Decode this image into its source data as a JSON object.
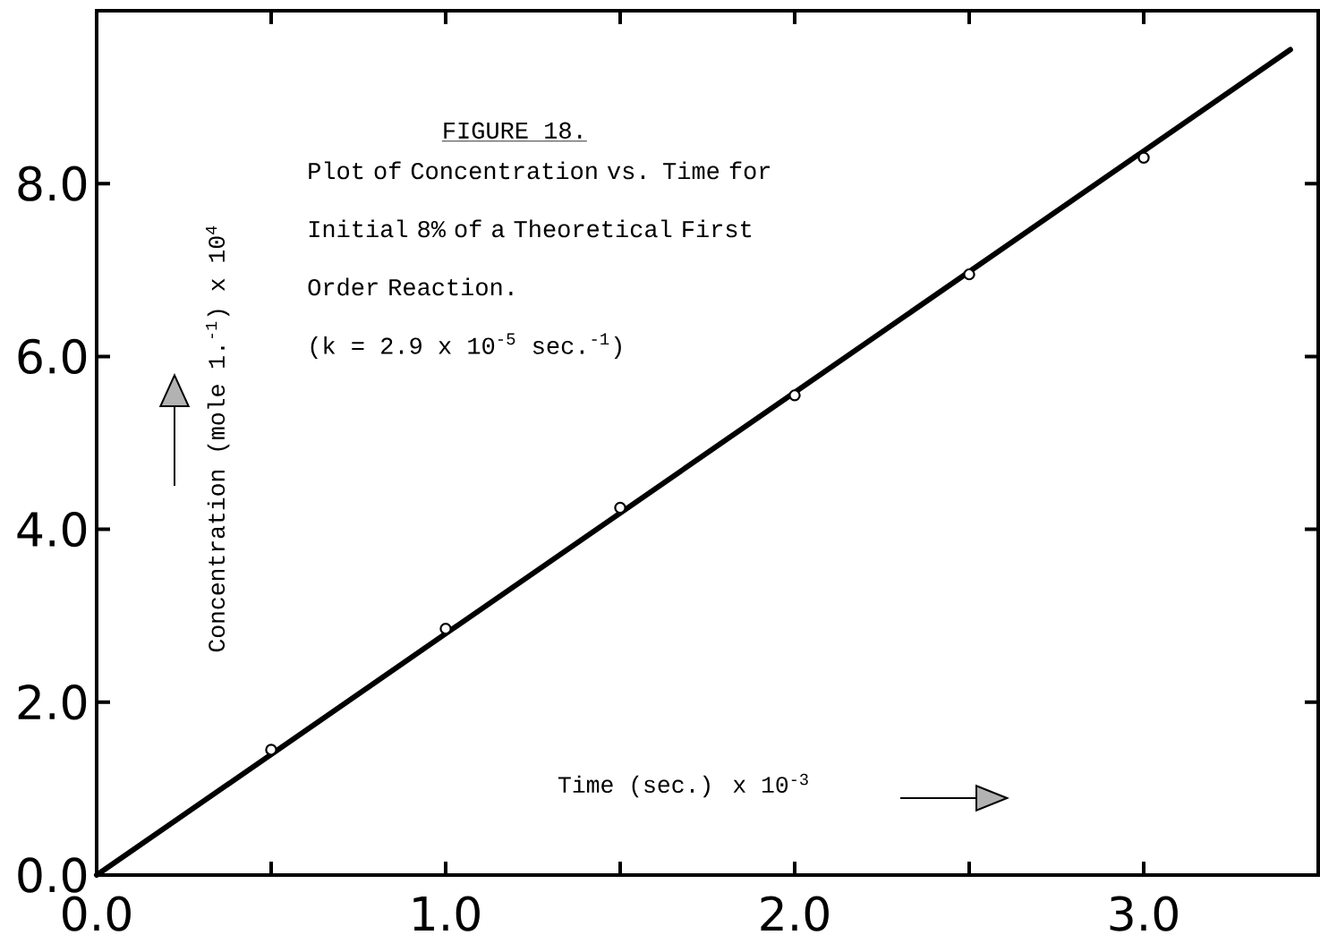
{
  "chart_data": {
    "type": "scatter",
    "title": "FIGURE 18.",
    "subtitle": "Plot of Concentration vs. Time for Initial 8% of a Theoretical First Order Reaction.",
    "annotations": [
      "(k = 2.9 x 10$^{-5}$ sec.$^{-1}$)"
    ],
    "xlabel": "Time (sec.) x 10$^{-3}$",
    "ylabel": "Concentration (mole 1.$^{-1}$) x 10$^{4}$",
    "series": [
      {
        "type": "line",
        "color": "#000000",
        "x": [
          0,
          3.42
        ],
        "values": [
          0,
          9.55
        ],
        "marker": "none",
        "line_style": "solid"
      },
      {
        "type": "scatter",
        "color": "#000000",
        "x": [
          0.5,
          1.0,
          1.5,
          2.0,
          2.5,
          3.0
        ],
        "values": [
          1.45,
          2.85,
          4.25,
          5.55,
          6.95,
          8.3
        ],
        "marker": "circle"
      }
    ],
    "xlim": [
      0,
      3.5
    ],
    "ylim": [
      0,
      10
    ],
    "xticks": [
      {
        "value": 0,
        "label": "0.0"
      },
      {
        "value": 0.5,
        "label": null
      },
      {
        "value": 1,
        "label": "1.0"
      },
      {
        "value": 1.5,
        "label": null
      },
      {
        "value": 2,
        "label": "2.0"
      },
      {
        "value": 2.5,
        "label": null
      },
      {
        "value": 3,
        "label": "3.0"
      }
    ],
    "yticks": [
      {
        "value": 0,
        "label": "0.0"
      },
      {
        "value": 2,
        "label": "2.0"
      },
      {
        "value": 4,
        "label": "4.0"
      },
      {
        "value": 6,
        "label": "6.0"
      },
      {
        "value": 8,
        "label": "8.0"
      }
    ]
  }
}
